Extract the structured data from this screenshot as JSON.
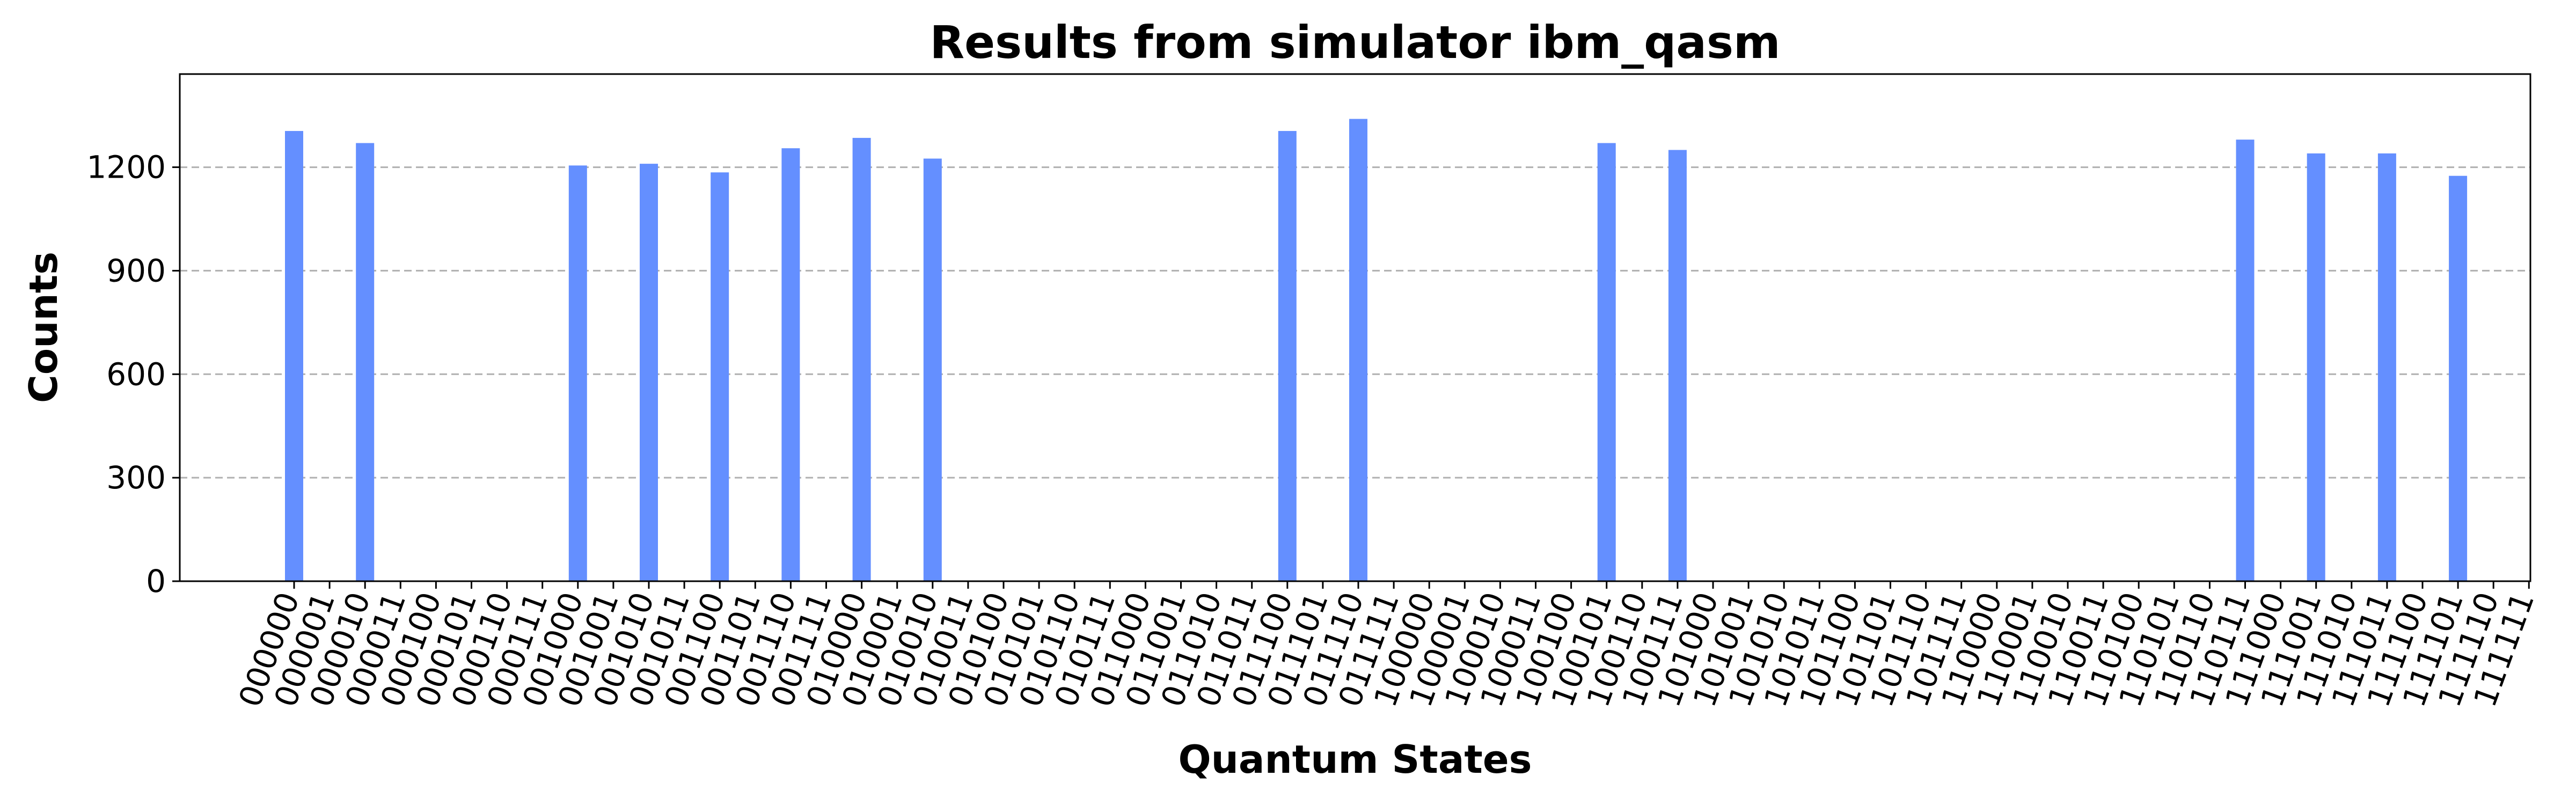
{
  "chart_data": {
    "type": "bar",
    "title": "Results from simulator ibm_qasm",
    "xlabel": "Quantum States",
    "ylabel": "Counts",
    "ylim": [
      0,
      1470
    ],
    "yticks": [
      0,
      300,
      600,
      900,
      1200
    ],
    "grid": true,
    "bar_color": "#648fff",
    "categories": [
      "000000",
      "000001",
      "000010",
      "000011",
      "000100",
      "000101",
      "000110",
      "000111",
      "001000",
      "001001",
      "001010",
      "001011",
      "001100",
      "001101",
      "001110",
      "001111",
      "010000",
      "010001",
      "010010",
      "010011",
      "010100",
      "010101",
      "010110",
      "010111",
      "011000",
      "011001",
      "011010",
      "011011",
      "011100",
      "011101",
      "011110",
      "011111",
      "100000",
      "100001",
      "100010",
      "100011",
      "100100",
      "100101",
      "100110",
      "100111",
      "101000",
      "101001",
      "101010",
      "101011",
      "101100",
      "101101",
      "101110",
      "101111",
      "110000",
      "110001",
      "110010",
      "110011",
      "110100",
      "110101",
      "110110",
      "110111",
      "111000",
      "111001",
      "111010",
      "111011",
      "111100",
      "111101",
      "111110",
      "111111"
    ],
    "values": [
      1305,
      0,
      1270,
      0,
      0,
      0,
      0,
      0,
      1205,
      0,
      1210,
      0,
      1185,
      0,
      1255,
      0,
      1285,
      0,
      1225,
      0,
      0,
      0,
      0,
      0,
      0,
      0,
      0,
      0,
      1305,
      0,
      1340,
      0,
      0,
      0,
      0,
      0,
      0,
      1270,
      0,
      1250,
      0,
      0,
      0,
      0,
      0,
      0,
      0,
      0,
      0,
      0,
      0,
      0,
      0,
      0,
      0,
      1280,
      0,
      1240,
      0,
      1240,
      0,
      1175,
      0,
      0
    ]
  }
}
